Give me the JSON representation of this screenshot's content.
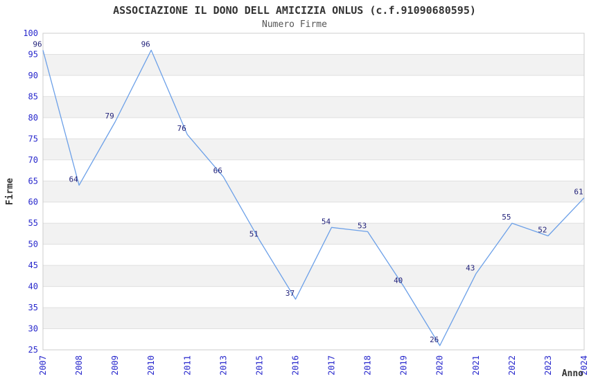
{
  "chart_data": {
    "type": "line",
    "title": "ASSOCIAZIONE IL DONO DELL AMICIZIA ONLUS (c.f.91090680595)",
    "subtitle": "Numero Firme",
    "xlabel": "Anno",
    "ylabel": "Firme",
    "categories": [
      "2007",
      "2008",
      "2009",
      "2010",
      "2011",
      "2013",
      "2015",
      "2016",
      "2017",
      "2018",
      "2019",
      "2020",
      "2021",
      "2022",
      "2023",
      "2024"
    ],
    "values": [
      96,
      64,
      79,
      96,
      76,
      66,
      51,
      37,
      54,
      53,
      40,
      26,
      43,
      55,
      52,
      61
    ],
    "ylim": [
      25,
      100
    ],
    "ytick_step": 5,
    "grid": "horizontal-bands",
    "legend": "none",
    "colors": {
      "line": "#6ca0e8",
      "tick_label": "#2727cc",
      "point_label": "#1f1f78",
      "band": "#f2f2f2",
      "grid": "#e0e0e0",
      "border": "#cccccc",
      "title": "#333333",
      "subtitle": "#555555",
      "axis_label": "#333333",
      "background": "#ffffff"
    }
  }
}
